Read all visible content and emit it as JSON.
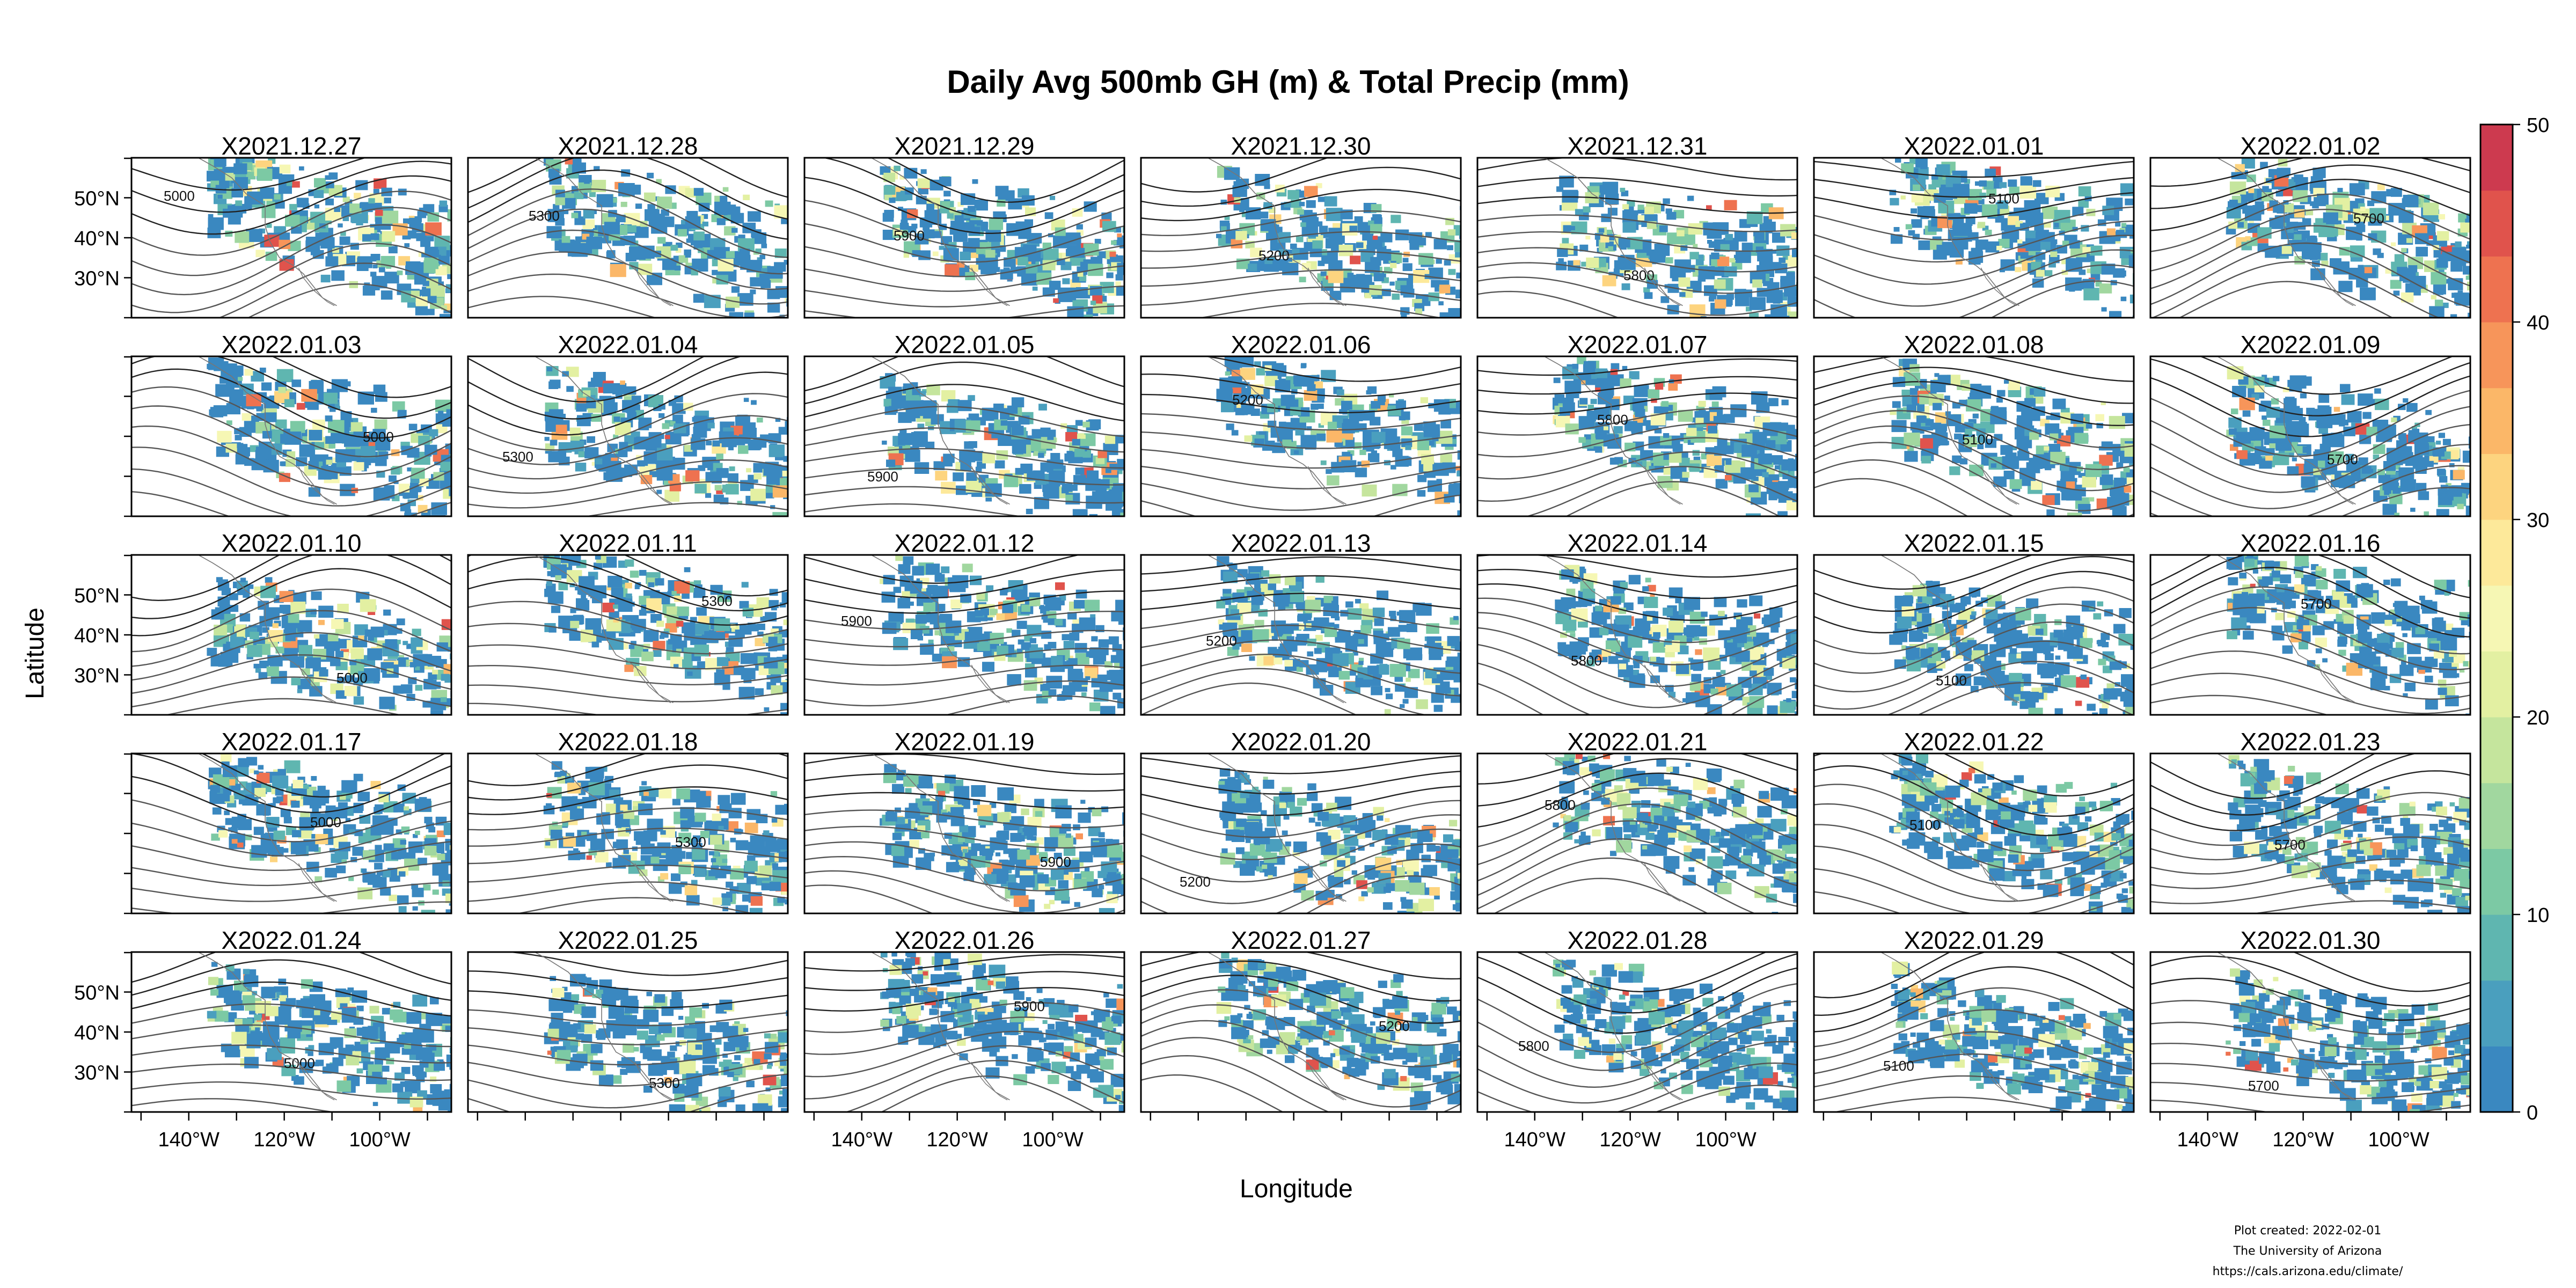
{
  "title": "Daily Avg 500mb GH (m) & Total Precip (mm)",
  "xlabel": "Longitude",
  "ylabel": "Latitude",
  "panels": [
    "X2021.12.27",
    "X2021.12.28",
    "X2021.12.29",
    "X2021.12.30",
    "X2021.12.31",
    "X2022.01.01",
    "X2022.01.02",
    "X2022.01.03",
    "X2022.01.04",
    "X2022.01.05",
    "X2022.01.06",
    "X2022.01.07",
    "X2022.01.08",
    "X2022.01.09",
    "X2022.01.10",
    "X2022.01.11",
    "X2022.01.12",
    "X2022.01.13",
    "X2022.01.14",
    "X2022.01.15",
    "X2022.01.16",
    "X2022.01.17",
    "X2022.01.18",
    "X2022.01.19",
    "X2022.01.20",
    "X2022.01.21",
    "X2022.01.22",
    "X2022.01.23",
    "X2022.01.24",
    "X2022.01.25",
    "X2022.01.26",
    "X2022.01.27",
    "X2022.01.28",
    "X2022.01.29",
    "X2022.01.30"
  ],
  "lon_ticks": [
    "140°W",
    "120°W",
    "100°W"
  ],
  "lat_ticks": [
    "50°N",
    "40°N",
    "30°N"
  ],
  "contour_labels": [
    "5000",
    "5100",
    "5200",
    "5300",
    "5700",
    "5800",
    "5900"
  ],
  "colorbar": {
    "ticks": [
      "0",
      "10",
      "20",
      "30",
      "40",
      "50"
    ],
    "min": 0,
    "max": 50,
    "colors": [
      "#3a88c0",
      "#4a9fbe",
      "#5fb6b0",
      "#7cc9a4",
      "#a1d79f",
      "#c5e59d",
      "#e3f0a2",
      "#f6f7b4",
      "#fde99a",
      "#fdd47f",
      "#fbb768",
      "#f7955a",
      "#ee7250",
      "#e0534c",
      "#cd3a4f"
    ]
  },
  "credits": {
    "line1": "Plot created: 2022-02-01",
    "line2": "The University of Arizona",
    "line3": "https://cals.arizona.edu/climate/"
  }
}
